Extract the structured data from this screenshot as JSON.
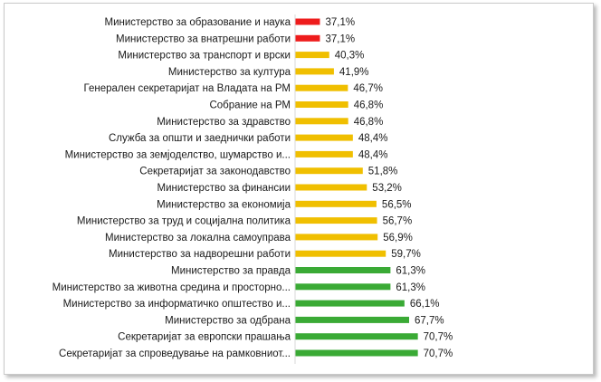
{
  "chart_data": {
    "type": "bar",
    "orientation": "horizontal",
    "title": "",
    "xlabel": "",
    "ylabel": "",
    "xlim": [
      0,
      100
    ],
    "grid": false,
    "legend": "none",
    "colors": {
      "red": "#ee1c1c",
      "yellow": "#f0bf00",
      "green": "#3aaa35"
    },
    "categories": [
      "Министерство  за образование и наука",
      "Министерство за внатрешни работи",
      "Министерство  за транспорт и врски",
      "Министерство  за култура",
      "Генерален  секретаријат на Владата на РМ",
      "Собрание на РМ",
      "Министерство  за здравство",
      "Служба за општи и заеднички работи",
      "Министерство  за земјоделство, шумарство и...",
      "Секретаријат за законодавство",
      "Министерство  за финансии",
      "Министерство  за економија",
      "Министерство  за труд и  социјална политика",
      "Министерство  за локална самоуправа",
      "Министерство  за надворешни  работи",
      "Министерство  за правда",
      "Министерство  за животна средина и просторно...",
      "Министерство  за информатичко  општество и...",
      "Министерство  за одбрана",
      "Секретаријат за европски  прашања",
      "Секретаријат за спроведување  на рамковниот..."
    ],
    "values": [
      37.1,
      37.1,
      40.3,
      41.9,
      46.7,
      46.8,
      46.8,
      48.4,
      48.4,
      51.8,
      53.2,
      56.5,
      56.7,
      56.9,
      59.7,
      61.3,
      61.3,
      66.1,
      67.7,
      70.7,
      70.7
    ],
    "data_labels": [
      "37,1%",
      "37,1%",
      "40,3%",
      "41,9%",
      "46,7%",
      "46,8%",
      "46,8%",
      "48,4%",
      "48,4%",
      "51,8%",
      "53,2%",
      "56,5%",
      "56,7%",
      "56,9%",
      "59,7%",
      "61,3%",
      "61,3%",
      "66,1%",
      "67,7%",
      "70,7%",
      "70,7%"
    ],
    "bar_colors": [
      "red",
      "red",
      "yellow",
      "yellow",
      "yellow",
      "yellow",
      "yellow",
      "yellow",
      "yellow",
      "yellow",
      "yellow",
      "yellow",
      "yellow",
      "yellow",
      "yellow",
      "green",
      "green",
      "green",
      "green",
      "green",
      "green"
    ]
  }
}
